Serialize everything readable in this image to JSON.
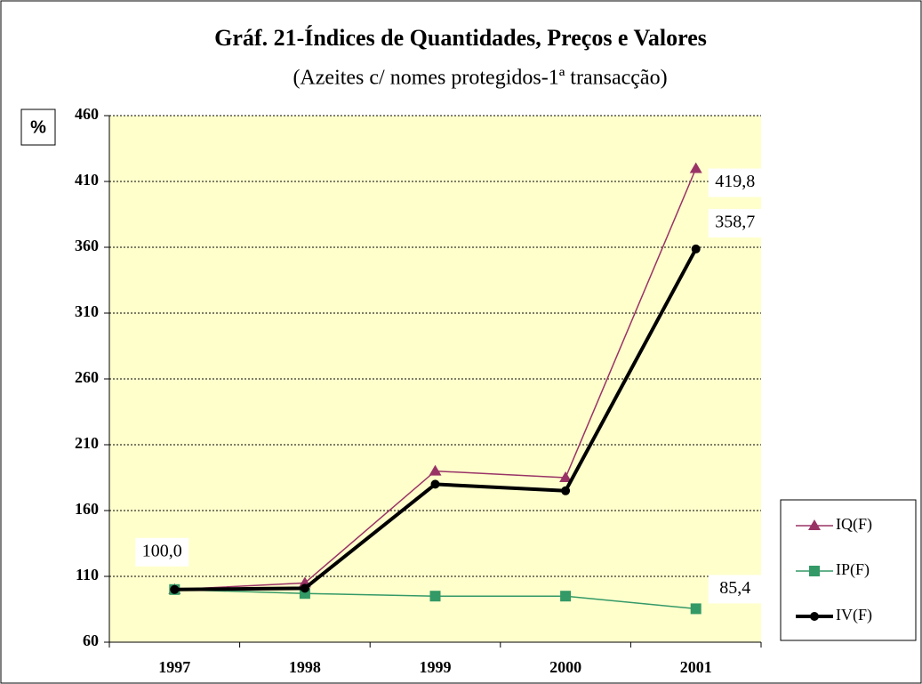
{
  "chart_data": {
    "type": "line",
    "title": "Gráf. 21-Índices de Quantidades, Preços e Valores",
    "subtitle": "(Azeites c/ nomes protegidos-1ª transacção)",
    "y_label": "%",
    "categories": [
      "1997",
      "1998",
      "1999",
      "2000",
      "2001"
    ],
    "series": [
      {
        "name": "IQ(F)",
        "color": "#993366",
        "marker": "triangle",
        "values": [
          100,
          105,
          190,
          185,
          419.8
        ],
        "value_labels": [
          "100,0",
          null,
          null,
          null,
          "419,8"
        ]
      },
      {
        "name": "IP(F)",
        "color": "#339966",
        "marker": "square",
        "values": [
          100,
          97,
          95,
          95,
          85.4
        ],
        "value_labels": [
          null,
          null,
          null,
          null,
          "85,4"
        ]
      },
      {
        "name": "IV(F)",
        "color": "#000000",
        "marker": "circle",
        "values": [
          100,
          101,
          180,
          175,
          358.7
        ],
        "value_labels": [
          null,
          null,
          null,
          null,
          "358,7"
        ]
      }
    ],
    "ylim": [
      60,
      460
    ],
    "yticks": [
      60,
      110,
      160,
      210,
      260,
      310,
      360,
      410,
      460
    ],
    "grid": true,
    "legend": "right"
  }
}
